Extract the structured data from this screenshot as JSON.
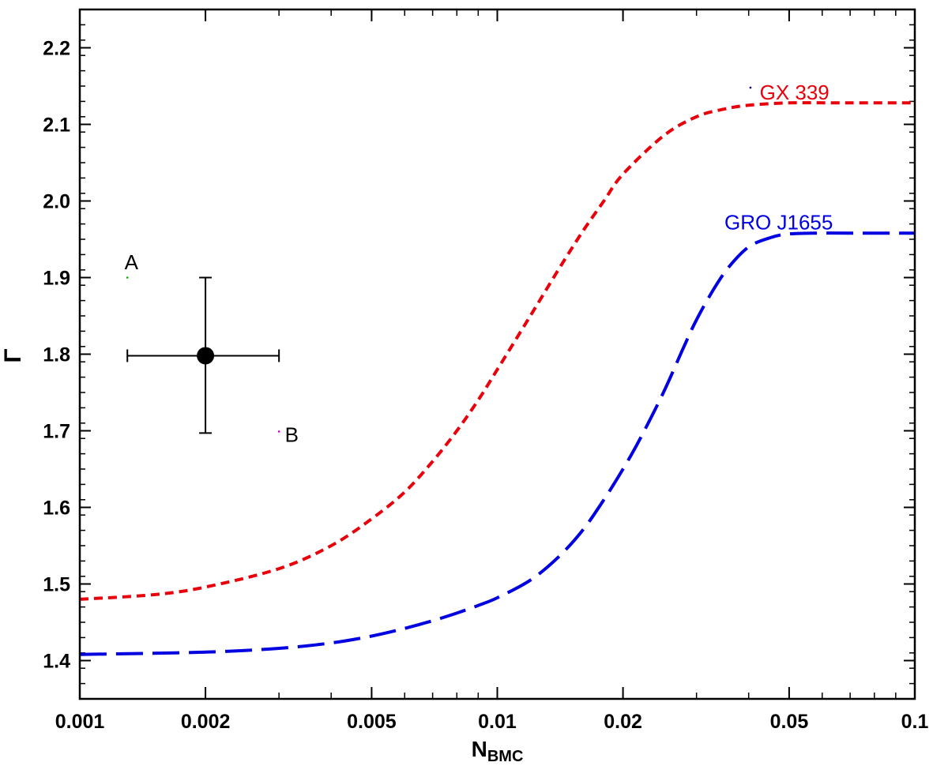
{
  "chart_data": {
    "type": "line",
    "title": "",
    "xlabel": "N",
    "xlabel_sub": "BMC",
    "ylabel": "Γ",
    "xscale": "log",
    "xlim": [
      0.001,
      0.1
    ],
    "ylim": [
      1.35,
      2.25
    ],
    "x_ticks": [
      {
        "value": 0.001,
        "label": "0.001"
      },
      {
        "value": 0.002,
        "label": "0.002"
      },
      {
        "value": 0.005,
        "label": "0.005"
      },
      {
        "value": 0.01,
        "label": "0.01"
      },
      {
        "value": 0.02,
        "label": "0.02"
      },
      {
        "value": 0.05,
        "label": "0.05"
      },
      {
        "value": 0.1,
        "label": "0.1"
      }
    ],
    "y_ticks": [
      {
        "value": 1.4,
        "label": "1.4"
      },
      {
        "value": 1.5,
        "label": "1.5"
      },
      {
        "value": 1.6,
        "label": "1.6"
      },
      {
        "value": 1.7,
        "label": "1.7"
      },
      {
        "value": 1.8,
        "label": "1.8"
      },
      {
        "value": 1.9,
        "label": "1.9"
      },
      {
        "value": 2.0,
        "label": "2.0"
      },
      {
        "value": 2.1,
        "label": "2.1"
      },
      {
        "value": 2.2,
        "label": "2.2"
      }
    ],
    "series": [
      {
        "name": "GX 339",
        "color": "#e8000b",
        "dash": "short",
        "x": [
          0.001,
          0.0015,
          0.002,
          0.003,
          0.004,
          0.005,
          0.006,
          0.007,
          0.008,
          0.009,
          0.01,
          0.012,
          0.014,
          0.016,
          0.018,
          0.02,
          0.025,
          0.03,
          0.035,
          0.04,
          0.05,
          0.07,
          0.1
        ],
        "y": [
          1.48,
          1.486,
          1.496,
          1.52,
          1.55,
          1.585,
          1.62,
          1.66,
          1.7,
          1.74,
          1.78,
          1.85,
          1.91,
          1.96,
          2.0,
          2.035,
          2.085,
          2.11,
          2.12,
          2.125,
          2.128,
          2.128,
          2.128
        ]
      },
      {
        "name": "GRO J1655",
        "color": "#0000e0",
        "dash": "long",
        "x": [
          0.001,
          0.002,
          0.003,
          0.004,
          0.005,
          0.006,
          0.007,
          0.008,
          0.009,
          0.01,
          0.012,
          0.014,
          0.016,
          0.018,
          0.02,
          0.022,
          0.025,
          0.028,
          0.03,
          0.033,
          0.036,
          0.04,
          0.045,
          0.05,
          0.06,
          0.07,
          0.1
        ],
        "y": [
          1.408,
          1.411,
          1.416,
          1.423,
          1.432,
          1.442,
          1.452,
          1.462,
          1.472,
          1.482,
          1.505,
          1.535,
          1.57,
          1.61,
          1.65,
          1.69,
          1.75,
          1.81,
          1.845,
          1.885,
          1.915,
          1.94,
          1.952,
          1.957,
          1.958,
          1.958,
          1.958
        ]
      }
    ],
    "points": [
      {
        "name": "data point",
        "x": 0.002,
        "y": 1.798,
        "xerr_low": 0.0013,
        "xerr_high": 0.003,
        "yerr_low": 1.697,
        "yerr_high": 1.9,
        "color": "#000000"
      },
      {
        "name": "A",
        "x": 0.0013,
        "y": 1.9,
        "color": "#00aa00"
      },
      {
        "name": "B",
        "x": 0.003,
        "y": 1.699,
        "color": "#cc00cc"
      },
      {
        "name": "GX 339 marker",
        "x": 0.0404,
        "y": 2.148,
        "color": "#000080"
      }
    ],
    "annotations": [
      {
        "text": "A",
        "x": 0.00128,
        "y": 1.92,
        "color": "#000000"
      },
      {
        "text": "B",
        "x": 0.0031,
        "y": 1.695,
        "color": "#000000"
      },
      {
        "text": "GX 339",
        "x": 0.0425,
        "y": 2.142,
        "color": "#e8000b"
      },
      {
        "text": "GRO J1655",
        "x": 0.035,
        "y": 1.972,
        "color": "#0000e0"
      }
    ]
  }
}
